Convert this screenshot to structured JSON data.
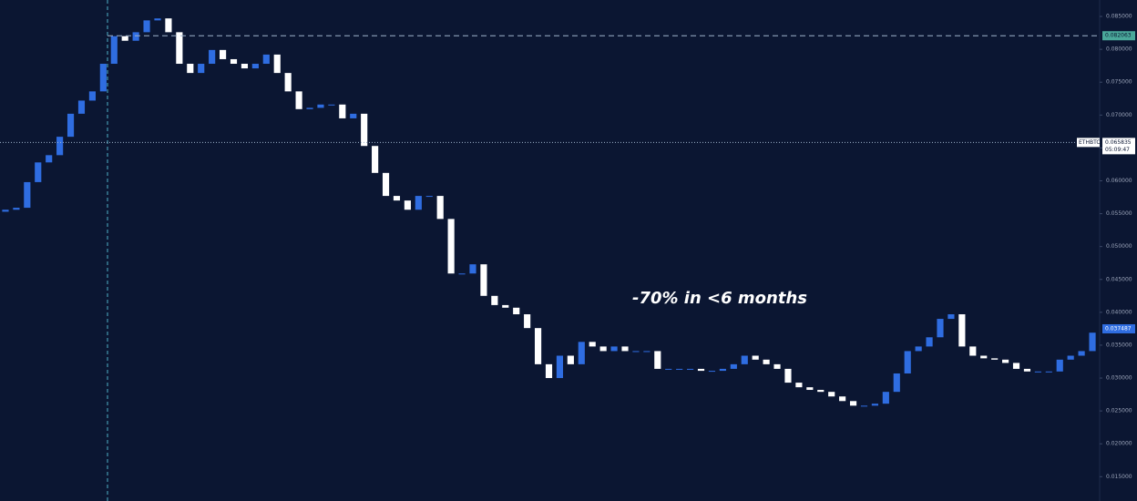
{
  "chart_data": {
    "type": "candlestick",
    "annotation": "-70% in <6 months",
    "up_color": "#2f6de1",
    "down_color": "#ffffff",
    "background": "#0b1632",
    "ylim": [
      0.0113,
      0.0875
    ],
    "yticks": [
      {
        "value": 0.085,
        "label": "0.085000"
      },
      {
        "value": 0.08,
        "label": "0.080000"
      },
      {
        "value": 0.075,
        "label": "0.075000"
      },
      {
        "value": 0.07,
        "label": "0.070000"
      },
      {
        "value": 0.065,
        "label": "0.065000"
      },
      {
        "value": 0.06,
        "label": "0.060000"
      },
      {
        "value": 0.055,
        "label": "0.055000"
      },
      {
        "value": 0.05,
        "label": "0.050000"
      },
      {
        "value": 0.045,
        "label": "0.045000"
      },
      {
        "value": 0.04,
        "label": "0.040000"
      },
      {
        "value": 0.035,
        "label": "0.035000"
      },
      {
        "value": 0.03,
        "label": "0.030000"
      },
      {
        "value": 0.025,
        "label": "0.025000"
      },
      {
        "value": 0.02,
        "label": "0.020000"
      },
      {
        "value": 0.015,
        "label": "0.015000"
      }
    ],
    "high_line": 0.082063,
    "last_price": {
      "symbol": "ETHBTC",
      "value": 0.065835,
      "countdown": "05:09:47"
    },
    "current_label": 0.037487,
    "open": [
      0.0553,
      0.0556,
      0.0559,
      0.0598,
      0.0628,
      0.0639,
      0.0667,
      0.0702,
      0.0722,
      0.0736,
      0.0778,
      0.082,
      0.0813,
      0.0826,
      0.0844,
      0.0847,
      0.0826,
      0.0778,
      0.0764,
      0.0778,
      0.0799,
      0.0785,
      0.0778,
      0.0771,
      0.0778,
      0.0792,
      0.0764,
      0.0736,
      0.0709,
      0.0711,
      0.0716,
      0.0716,
      0.0695,
      0.0702,
      0.0653,
      0.0612,
      0.0577,
      0.057,
      0.0556,
      0.0577,
      0.0577,
      0.0542,
      0.0459,
      0.0459,
      0.0473,
      0.0425,
      0.0411,
      0.0407,
      0.0397,
      0.0376,
      0.0321,
      0.03,
      0.0334,
      0.0321,
      0.0355,
      0.0348,
      0.0341,
      0.0348,
      0.0341,
      0.0341,
      0.0341,
      0.0314,
      0.0314,
      0.0314,
      0.0314,
      0.0311,
      0.0311,
      0.0314,
      0.0321,
      0.0334,
      0.0328,
      0.0321,
      0.0314,
      0.0293,
      0.0286,
      0.0282,
      0.0279,
      0.0272,
      0.0265,
      0.0258,
      0.0258,
      0.0261,
      0.0279,
      0.0307,
      0.0341,
      0.0348,
      0.0362,
      0.039,
      0.0397,
      0.0348,
      0.0334,
      0.033,
      0.0328,
      0.0323,
      0.0314,
      0.031,
      0.031,
      0.031,
      0.0328,
      0.0334,
      0.0341
    ],
    "close": [
      0.0556,
      0.0559,
      0.0598,
      0.0628,
      0.0639,
      0.0667,
      0.0702,
      0.0722,
      0.0736,
      0.0778,
      0.082,
      0.0813,
      0.0826,
      0.0844,
      0.0847,
      0.0826,
      0.0778,
      0.0764,
      0.0778,
      0.0799,
      0.0785,
      0.0778,
      0.0771,
      0.0778,
      0.0792,
      0.0764,
      0.0736,
      0.0709,
      0.0711,
      0.0716,
      0.0716,
      0.0695,
      0.0702,
      0.0653,
      0.0612,
      0.0577,
      0.057,
      0.0556,
      0.0577,
      0.0577,
      0.0542,
      0.0459,
      0.0459,
      0.0473,
      0.0425,
      0.0411,
      0.0407,
      0.0397,
      0.0376,
      0.0321,
      0.03,
      0.0334,
      0.0321,
      0.0355,
      0.0348,
      0.0341,
      0.0348,
      0.0341,
      0.0341,
      0.0341,
      0.0314,
      0.0314,
      0.0314,
      0.0314,
      0.0311,
      0.0311,
      0.0314,
      0.0321,
      0.0334,
      0.0328,
      0.0321,
      0.0314,
      0.0293,
      0.0286,
      0.0282,
      0.0279,
      0.0272,
      0.0265,
      0.0258,
      0.0258,
      0.0261,
      0.0279,
      0.0307,
      0.0341,
      0.0348,
      0.0362,
      0.039,
      0.0397,
      0.0348,
      0.0334,
      0.033,
      0.0328,
      0.0323,
      0.0314,
      0.031,
      0.031,
      0.031,
      0.0328,
      0.0334,
      0.0341,
      0.0369
    ]
  }
}
